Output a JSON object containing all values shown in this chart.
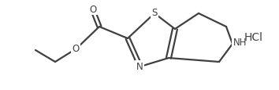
{
  "background_color": "#ffffff",
  "line_color": "#404040",
  "line_width": 1.6,
  "text_color": "#404040",
  "hcl_label": "HCl",
  "nh_label": "NH",
  "n_label": "N",
  "s_label": "S",
  "o_label": "O",
  "figsize": [
    3.54,
    1.16
  ],
  "dpi": 100,
  "font_size": 8.0
}
